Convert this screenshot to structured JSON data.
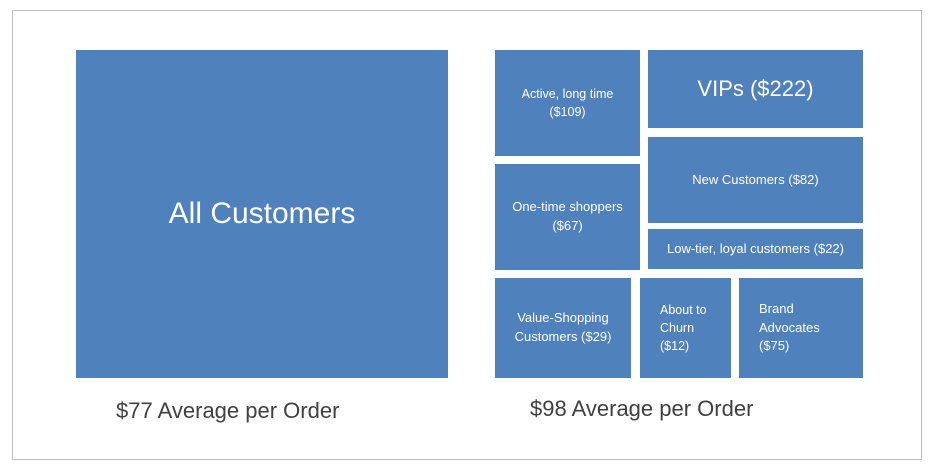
{
  "left": {
    "tile_label": "All Customers",
    "caption": "$77 Average per Order"
  },
  "right": {
    "caption": "$98 Average per Order",
    "segments": [
      {
        "label": "Active, long time\n($109)"
      },
      {
        "label": "VIPs ($222)"
      },
      {
        "label": "One-time shoppers\n($67)"
      },
      {
        "label": "New Customers ($82)"
      },
      {
        "label": "Low-tier, loyal customers ($22)"
      },
      {
        "label": "Value-Shopping\nCustomers ($29)"
      },
      {
        "label": "About to\nChurn\n($12)"
      },
      {
        "label": "Brand\nAdvocates\n($75)"
      }
    ]
  },
  "colors": {
    "tile": "#4f81bd",
    "text": "#ffffff",
    "caption": "#404040",
    "border": "#bfbfbf"
  }
}
